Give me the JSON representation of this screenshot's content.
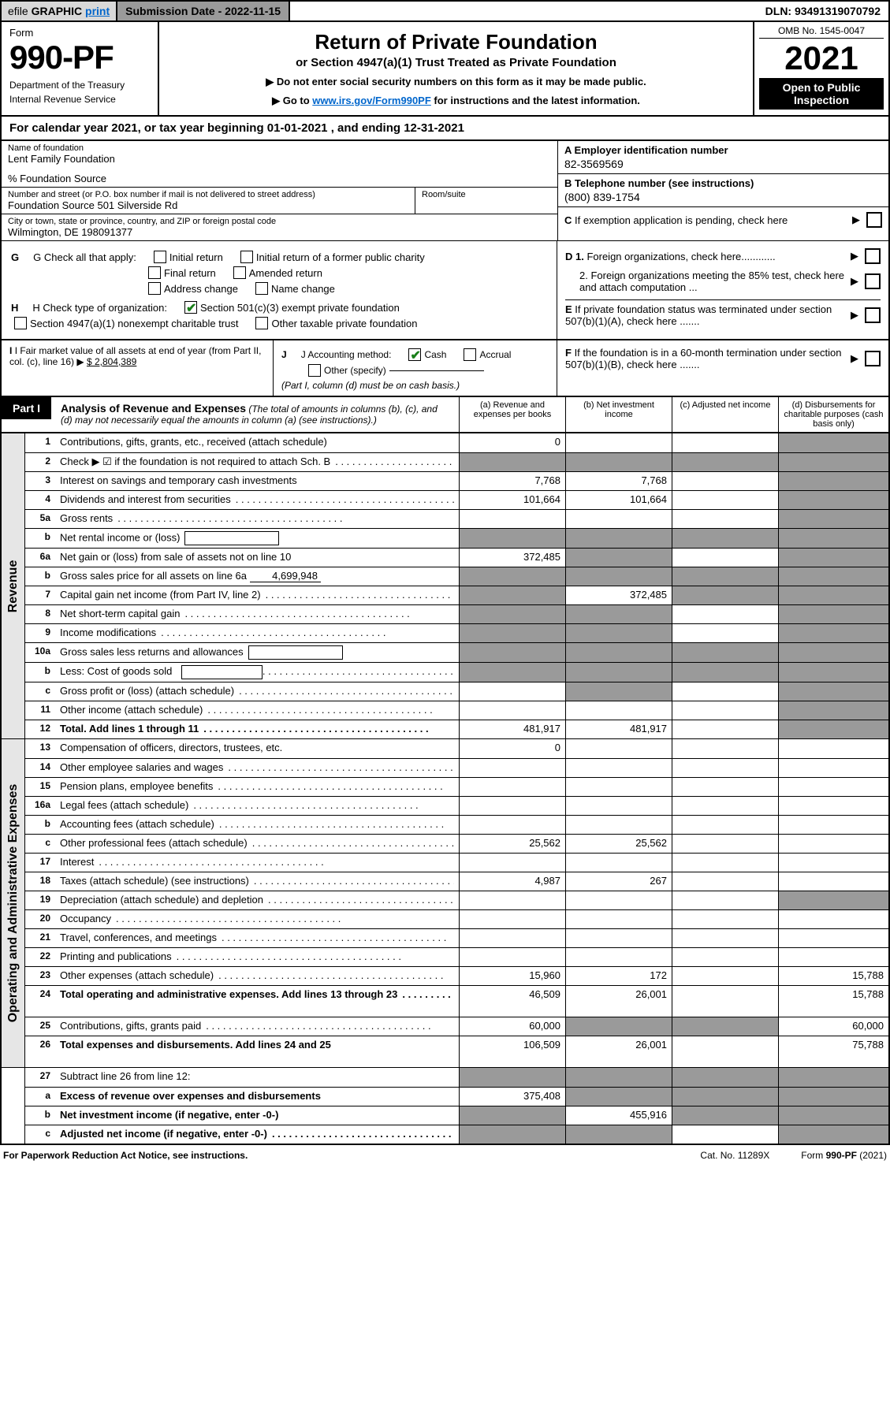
{
  "topbar": {
    "efile_prefix": "efile",
    "efile_graphic": "GRAPHIC",
    "efile_print": "print",
    "submission_label": "Submission Date - ",
    "submission_date": "2022-11-15",
    "dln_label": "DLN: ",
    "dln": "93491319070792"
  },
  "header": {
    "form_label": "Form",
    "form_number": "990-PF",
    "dept1": "Department of the Treasury",
    "dept2": "Internal Revenue Service",
    "title": "Return of Private Foundation",
    "subtitle": "or Section 4947(a)(1) Trust Treated as Private Foundation",
    "note1": "▶ Do not enter social security numbers on this form as it may be made public.",
    "note2_prefix": "▶ Go to ",
    "note2_link": "www.irs.gov/Form990PF",
    "note2_suffix": " for instructions and the latest information.",
    "omb": "OMB No. 1545-0047",
    "year": "2021",
    "open1": "Open to Public",
    "open2": "Inspection"
  },
  "calendar_line": "For calendar year 2021, or tax year beginning 01-01-2021                  , and ending 12-31-2021",
  "entity": {
    "name_label": "Name of foundation",
    "name": "Lent Family Foundation",
    "care_of": "% Foundation Source",
    "addr_label": "Number and street (or P.O. box number if mail is not delivered to street address)",
    "addr": "Foundation Source 501 Silverside Rd",
    "room_label": "Room/suite",
    "city_label": "City or town, state or province, country, and ZIP or foreign postal code",
    "city": "Wilmington, DE  198091377",
    "A_label": "A Employer identification number",
    "A_val": "82-3569569",
    "B_label": "B Telephone number (see instructions)",
    "B_val": "(800) 839-1754",
    "C_label": "C If exemption application is pending, check here",
    "D1": "D 1. Foreign organizations, check here............",
    "D2": "2. Foreign organizations meeting the 85% test, check here and attach computation ...",
    "E": "E  If private foundation status was terminated under section 507(b)(1)(A), check here .......",
    "F": "F  If the foundation is in a 60-month termination under section 507(b)(1)(B), check here .......",
    "G_label": "G Check all that apply:",
    "G_opts": [
      "Initial return",
      "Initial return of a former public charity",
      "Final return",
      "Amended return",
      "Address change",
      "Name change"
    ],
    "H_label": "H Check type of organization:",
    "H_opt1": "Section 501(c)(3) exempt private foundation",
    "H_opt2": "Section 4947(a)(1) nonexempt charitable trust",
    "H_opt3": "Other taxable private foundation",
    "I_label": "I Fair market value of all assets at end of year (from Part II, col. (c), line 16)",
    "I_val": "$  2,804,389",
    "J_label": "J Accounting method:",
    "J_opts": [
      "Cash",
      "Accrual"
    ],
    "J_other": "Other (specify)",
    "J_note": "(Part I, column (d) must be on cash basis.)"
  },
  "part1": {
    "tag": "Part I",
    "title": "Analysis of Revenue and Expenses",
    "title_note": "(The total of amounts in columns (b), (c), and (d) may not necessarily equal the amounts in column (a) (see instructions).)",
    "col_a": "(a) Revenue and expenses per books",
    "col_b": "(b) Net investment income",
    "col_c": "(c) Adjusted net income",
    "col_d": "(d) Disbursements for charitable purposes (cash basis only)"
  },
  "side_labels": {
    "rev": "Revenue",
    "exp": "Operating and Administrative Expenses"
  },
  "rows": [
    {
      "ln": "1",
      "desc": "Contributions, gifts, grants, etc., received (attach schedule)",
      "a": "0",
      "d_shade": true
    },
    {
      "ln": "2",
      "desc": "Check ▶ ☑ if the foundation is not required to attach Sch. B",
      "dots": true,
      "a_shade": false,
      "b_shade": true,
      "c_shade": true,
      "d_shade": true,
      "no_a": true
    },
    {
      "ln": "3",
      "desc": "Interest on savings and temporary cash investments",
      "a": "7,768",
      "b": "7,768",
      "d_shade": true
    },
    {
      "ln": "4",
      "desc": "Dividends and interest from securities",
      "dots": true,
      "a": "101,664",
      "b": "101,664",
      "d_shade": true
    },
    {
      "ln": "5a",
      "desc": "Gross rents",
      "dots": true,
      "d_shade": true
    },
    {
      "ln": "b",
      "desc": "Net rental income or (loss)",
      "inline_box": true,
      "a_shade": true,
      "b_shade": true,
      "c_shade": true,
      "d_shade": true
    },
    {
      "ln": "6a",
      "desc": "Net gain or (loss) from sale of assets not on line 10",
      "a": "372,485",
      "b_shade": true,
      "d_shade": true
    },
    {
      "ln": "b",
      "desc": "Gross sales price for all assets on line 6a",
      "inline_amt": "4,699,948",
      "a_shade": true,
      "b_shade": true,
      "c_shade": true,
      "d_shade": true
    },
    {
      "ln": "7",
      "desc": "Capital gain net income (from Part IV, line 2)",
      "dots": true,
      "a_shade": true,
      "b": "372,485",
      "c_shade": true,
      "d_shade": true
    },
    {
      "ln": "8",
      "desc": "Net short-term capital gain",
      "dots": true,
      "a_shade": true,
      "b_shade": true,
      "d_shade": true
    },
    {
      "ln": "9",
      "desc": "Income modifications",
      "dots": true,
      "a_shade": true,
      "b_shade": true,
      "d_shade": true
    },
    {
      "ln": "10a",
      "desc": "Gross sales less returns and allowances",
      "inline_box": true,
      "a_shade": true,
      "b_shade": true,
      "c_shade": true,
      "d_shade": true
    },
    {
      "ln": "b",
      "desc": "Less: Cost of goods sold",
      "dots": true,
      "inline_box": true,
      "a_shade": true,
      "b_shade": true,
      "c_shade": true,
      "d_shade": true
    },
    {
      "ln": "c",
      "desc": "Gross profit or (loss) (attach schedule)",
      "dots": true,
      "b_shade": true,
      "d_shade": true
    },
    {
      "ln": "11",
      "desc": "Other income (attach schedule)",
      "dots": true,
      "d_shade": true
    },
    {
      "ln": "12",
      "desc": "Total. Add lines 1 through 11",
      "bold": true,
      "dots": true,
      "a": "481,917",
      "b": "481,917",
      "d_shade": true
    }
  ],
  "exp_rows": [
    {
      "ln": "13",
      "desc": "Compensation of officers, directors, trustees, etc.",
      "a": "0"
    },
    {
      "ln": "14",
      "desc": "Other employee salaries and wages",
      "dots": true
    },
    {
      "ln": "15",
      "desc": "Pension plans, employee benefits",
      "dots": true
    },
    {
      "ln": "16a",
      "desc": "Legal fees (attach schedule)",
      "dots": true
    },
    {
      "ln": "b",
      "desc": "Accounting fees (attach schedule)",
      "dots": true
    },
    {
      "ln": "c",
      "desc": "Other professional fees (attach schedule)",
      "dots": true,
      "a": "25,562",
      "b": "25,562"
    },
    {
      "ln": "17",
      "desc": "Interest",
      "dots": true
    },
    {
      "ln": "18",
      "desc": "Taxes (attach schedule) (see instructions)",
      "dots": true,
      "a": "4,987",
      "b": "267"
    },
    {
      "ln": "19",
      "desc": "Depreciation (attach schedule) and depletion",
      "dots": true,
      "d_shade": true
    },
    {
      "ln": "20",
      "desc": "Occupancy",
      "dots": true
    },
    {
      "ln": "21",
      "desc": "Travel, conferences, and meetings",
      "dots": true
    },
    {
      "ln": "22",
      "desc": "Printing and publications",
      "dots": true
    },
    {
      "ln": "23",
      "desc": "Other expenses (attach schedule)",
      "dots": true,
      "a": "15,960",
      "b": "172",
      "d": "15,788"
    },
    {
      "ln": "24",
      "desc": "Total operating and administrative expenses. Add lines 13 through 23",
      "bold": true,
      "dots": true,
      "a": "46,509",
      "b": "26,001",
      "d": "15,788",
      "tall": true
    },
    {
      "ln": "25",
      "desc": "Contributions, gifts, grants paid",
      "dots": true,
      "a": "60,000",
      "b_shade": true,
      "c_shade": true,
      "d": "60,000"
    },
    {
      "ln": "26",
      "desc": "Total expenses and disbursements. Add lines 24 and 25",
      "bold": true,
      "a": "106,509",
      "b": "26,001",
      "d": "75,788",
      "tall": true
    }
  ],
  "net_rows": [
    {
      "ln": "27",
      "desc": "Subtract line 26 from line 12:",
      "a_shade": true,
      "b_shade": true,
      "c_shade": true,
      "d_shade": true
    },
    {
      "ln": "a",
      "desc": "Excess of revenue over expenses and disbursements",
      "bold": true,
      "a": "375,408",
      "b_shade": true,
      "c_shade": true,
      "d_shade": true
    },
    {
      "ln": "b",
      "desc": "Net investment income (if negative, enter -0-)",
      "bold": true,
      "a_shade": true,
      "b": "455,916",
      "c_shade": true,
      "d_shade": true
    },
    {
      "ln": "c",
      "desc": "Adjusted net income (if negative, enter -0-)",
      "bold": true,
      "dots": true,
      "a_shade": true,
      "b_shade": true,
      "d_shade": true
    }
  ],
  "footer": {
    "left": "For Paperwork Reduction Act Notice, see instructions.",
    "mid": "Cat. No. 11289X",
    "right": "Form 990-PF (2021)"
  },
  "colors": {
    "shade": "#9a9a9a",
    "side_bg": "#e6e6e6",
    "link": "#0066cc",
    "check": "#1a7f1a"
  }
}
